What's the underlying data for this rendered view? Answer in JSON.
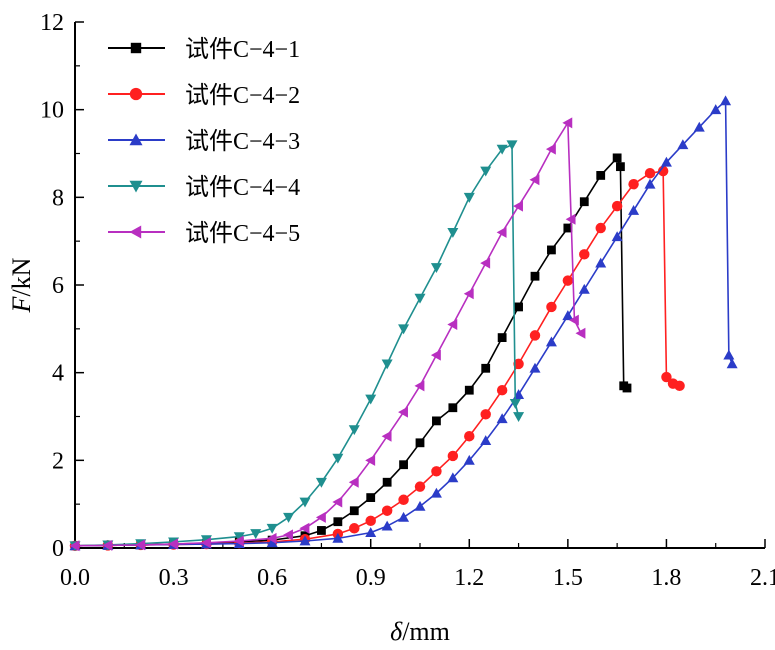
{
  "chart_data": {
    "type": "line",
    "title": "",
    "xlabel_symbol": "δ",
    "xlabel_unit": "/mm",
    "ylabel_symbol": "F",
    "ylabel_unit": "/kN",
    "xlim": [
      0.0,
      2.1
    ],
    "ylim": [
      0,
      12
    ],
    "xticks": [
      "0.0",
      "0.3",
      "0.6",
      "0.9",
      "1.2",
      "1.5",
      "1.8",
      "2.1"
    ],
    "yticks": [
      "0",
      "2",
      "4",
      "6",
      "8",
      "10",
      "12"
    ],
    "grid": false,
    "legend_position": "top-left",
    "series": [
      {
        "name": "试件C−4−1",
        "color": "#000000",
        "marker": "square",
        "x": [
          0.0,
          0.1,
          0.2,
          0.3,
          0.4,
          0.5,
          0.6,
          0.7,
          0.75,
          0.8,
          0.85,
          0.9,
          0.95,
          1.0,
          1.05,
          1.1,
          1.15,
          1.2,
          1.25,
          1.3,
          1.35,
          1.4,
          1.45,
          1.5,
          1.55,
          1.6,
          1.65,
          1.66,
          1.67,
          1.68
        ],
        "y": [
          0.05,
          0.06,
          0.07,
          0.09,
          0.11,
          0.14,
          0.18,
          0.28,
          0.4,
          0.6,
          0.85,
          1.15,
          1.5,
          1.9,
          2.4,
          2.9,
          3.2,
          3.6,
          4.1,
          4.8,
          5.5,
          6.2,
          6.8,
          7.3,
          7.9,
          8.5,
          8.9,
          8.7,
          3.7,
          3.65
        ]
      },
      {
        "name": "试件C−4−2",
        "color": "#ff2020",
        "marker": "circle",
        "x": [
          0.0,
          0.1,
          0.2,
          0.3,
          0.4,
          0.5,
          0.6,
          0.7,
          0.8,
          0.85,
          0.9,
          0.95,
          1.0,
          1.05,
          1.1,
          1.15,
          1.2,
          1.25,
          1.3,
          1.35,
          1.4,
          1.45,
          1.5,
          1.55,
          1.6,
          1.65,
          1.7,
          1.75,
          1.79,
          1.8,
          1.82,
          1.84
        ],
        "y": [
          0.05,
          0.06,
          0.07,
          0.08,
          0.09,
          0.11,
          0.14,
          0.2,
          0.32,
          0.45,
          0.62,
          0.85,
          1.1,
          1.4,
          1.75,
          2.1,
          2.55,
          3.05,
          3.6,
          4.2,
          4.85,
          5.5,
          6.1,
          6.7,
          7.3,
          7.8,
          8.3,
          8.55,
          8.6,
          3.9,
          3.75,
          3.7
        ]
      },
      {
        "name": "试件C−4−3",
        "color": "#2b3cc8",
        "marker": "triangle-up",
        "x": [
          0.0,
          0.1,
          0.2,
          0.3,
          0.4,
          0.5,
          0.6,
          0.7,
          0.8,
          0.9,
          0.95,
          1.0,
          1.05,
          1.1,
          1.15,
          1.2,
          1.25,
          1.3,
          1.35,
          1.4,
          1.45,
          1.5,
          1.55,
          1.6,
          1.65,
          1.7,
          1.75,
          1.8,
          1.85,
          1.9,
          1.95,
          1.98,
          1.99,
          2.0
        ],
        "y": [
          0.05,
          0.06,
          0.07,
          0.08,
          0.09,
          0.1,
          0.12,
          0.16,
          0.22,
          0.35,
          0.5,
          0.7,
          0.95,
          1.25,
          1.6,
          2.0,
          2.45,
          2.95,
          3.5,
          4.1,
          4.7,
          5.3,
          5.9,
          6.5,
          7.1,
          7.7,
          8.3,
          8.8,
          9.2,
          9.6,
          10.0,
          10.2,
          4.4,
          4.2
        ]
      },
      {
        "name": "试件C−4−4",
        "color": "#1f8f8f",
        "marker": "triangle-down",
        "x": [
          0.0,
          0.1,
          0.2,
          0.3,
          0.4,
          0.5,
          0.55,
          0.6,
          0.65,
          0.7,
          0.75,
          0.8,
          0.85,
          0.9,
          0.95,
          1.0,
          1.05,
          1.1,
          1.15,
          1.2,
          1.25,
          1.3,
          1.33,
          1.34,
          1.35
        ],
        "y": [
          0.05,
          0.07,
          0.1,
          0.14,
          0.19,
          0.26,
          0.33,
          0.45,
          0.7,
          1.05,
          1.5,
          2.05,
          2.7,
          3.4,
          4.2,
          5.0,
          5.7,
          6.4,
          7.2,
          8.0,
          8.6,
          9.1,
          9.2,
          3.3,
          3.0
        ]
      },
      {
        "name": "试件C−4−5",
        "color": "#b82fc0",
        "marker": "triangle-left",
        "x": [
          0.0,
          0.1,
          0.2,
          0.3,
          0.4,
          0.5,
          0.6,
          0.65,
          0.7,
          0.75,
          0.8,
          0.85,
          0.9,
          0.95,
          1.0,
          1.05,
          1.1,
          1.15,
          1.2,
          1.25,
          1.3,
          1.35,
          1.4,
          1.45,
          1.5,
          1.51,
          1.52,
          1.54
        ],
        "y": [
          0.05,
          0.06,
          0.07,
          0.09,
          0.12,
          0.16,
          0.22,
          0.3,
          0.45,
          0.7,
          1.05,
          1.5,
          2.0,
          2.55,
          3.1,
          3.7,
          4.4,
          5.1,
          5.8,
          6.5,
          7.2,
          7.8,
          8.4,
          9.1,
          9.7,
          7.5,
          5.2,
          4.9
        ]
      }
    ]
  }
}
